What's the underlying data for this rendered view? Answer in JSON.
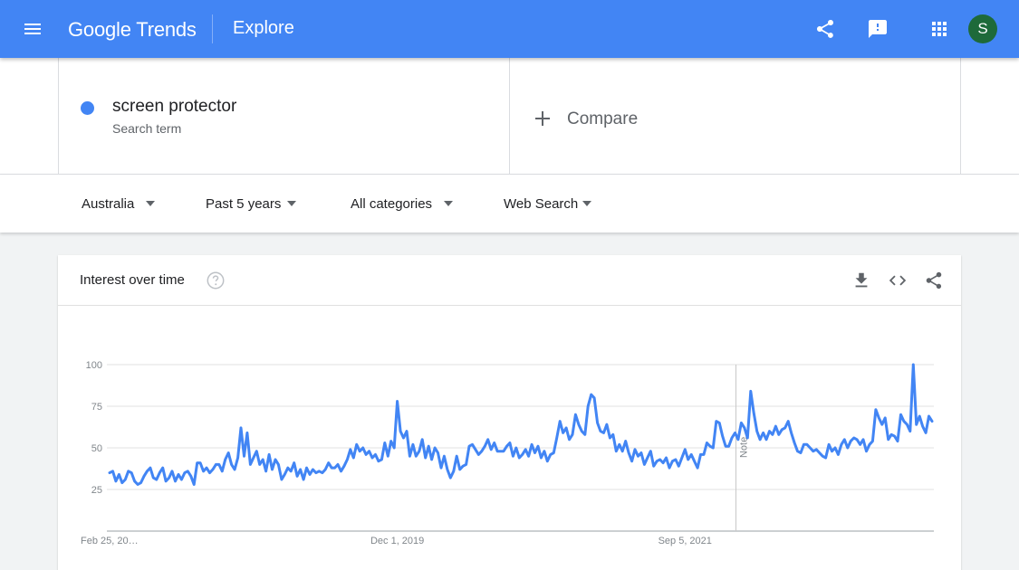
{
  "header": {
    "logo_google": "Google",
    "logo_trends": "Trends",
    "section_title": "Explore",
    "avatar_initial": "S",
    "brand_color": "#4285f4"
  },
  "search": {
    "term": {
      "name": "screen protector",
      "type": "Search term",
      "color": "#4285f4"
    },
    "compare_label": "Compare"
  },
  "filters": [
    {
      "label": "Australia"
    },
    {
      "label": "Past 5 years"
    },
    {
      "label": "All categories"
    },
    {
      "label": "Web Search"
    }
  ],
  "interest_card": {
    "title": "Interest over time",
    "icons": [
      "download-icon",
      "embed-code-icon",
      "share-icon"
    ]
  },
  "chart_data": {
    "type": "line",
    "title": "",
    "xlabel": "",
    "ylabel": "",
    "ylim": [
      0,
      100
    ],
    "y_ticks": [
      25,
      50,
      75,
      100
    ],
    "x_tick_labels": [
      "Feb 25, 20…",
      "Dec 1, 2019",
      "Sep 5, 2021"
    ],
    "x_tick_weeks": [
      0,
      92,
      184
    ],
    "annotation": {
      "label": "Note",
      "week": 200
    },
    "grid": true,
    "legend": "none",
    "series": [
      {
        "color": "#4285f4",
        "values": [
          35,
          36,
          30,
          34,
          29,
          31,
          36,
          35,
          30,
          28,
          29,
          33,
          36,
          38,
          32,
          31,
          35,
          38,
          30,
          32,
          36,
          30,
          34,
          31,
          35,
          36,
          33,
          28,
          41,
          41,
          36,
          38,
          35,
          37,
          40,
          40,
          36,
          43,
          47,
          40,
          37,
          44,
          62,
          45,
          59,
          40,
          44,
          48,
          40,
          43,
          36,
          46,
          37,
          43,
          40,
          31,
          34,
          38,
          36,
          41,
          33,
          37,
          31,
          38,
          34,
          37,
          35,
          36,
          35,
          37,
          41,
          38,
          38,
          40,
          36,
          39,
          43,
          49,
          44,
          52,
          48,
          50,
          46,
          48,
          44,
          46,
          42,
          43,
          53,
          45,
          54,
          50,
          78,
          60,
          56,
          60,
          45,
          52,
          45,
          48,
          55,
          44,
          51,
          43,
          50,
          47,
          38,
          45,
          37,
          32,
          36,
          45,
          37,
          39,
          40,
          51,
          52,
          49,
          46,
          48,
          51,
          55,
          49,
          53,
          48,
          48,
          48,
          51,
          53,
          45,
          50,
          44,
          46,
          49,
          45,
          52,
          47,
          51,
          44,
          48,
          42,
          46,
          47,
          56,
          66,
          59,
          62,
          55,
          58,
          70,
          64,
          60,
          58,
          75,
          82,
          80,
          65,
          60,
          59,
          64,
          56,
          58,
          48,
          52,
          48,
          54,
          47,
          42,
          49,
          45,
          47,
          40,
          44,
          48,
          39,
          42,
          43,
          41,
          44,
          38,
          42,
          43,
          39,
          44,
          49,
          43,
          46,
          42,
          38,
          46,
          46,
          53,
          51,
          50,
          66,
          65,
          57,
          51,
          51,
          56,
          59,
          55,
          65,
          62,
          56,
          84,
          71,
          60,
          55,
          59,
          55,
          60,
          58,
          63,
          58,
          61,
          62,
          66,
          59,
          53,
          48,
          47,
          52,
          52,
          50,
          48,
          49,
          47,
          45,
          44,
          52,
          48,
          50,
          46,
          52,
          55,
          50,
          54,
          56,
          55,
          52,
          55,
          48,
          52,
          54,
          73,
          68,
          64,
          68,
          55,
          58,
          57,
          54,
          70,
          66,
          64,
          60,
          100,
          64,
          69,
          63,
          59,
          69,
          66
        ]
      }
    ]
  }
}
